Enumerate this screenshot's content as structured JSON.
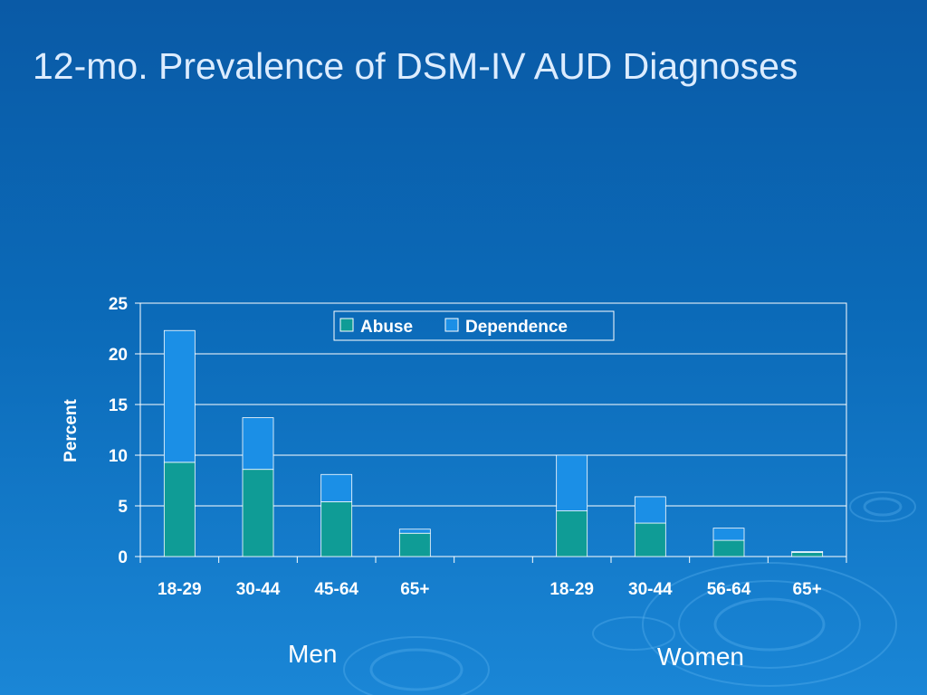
{
  "slide": {
    "title": "12-mo. Prevalence of DSM-IV AUD Diagnoses",
    "group_labels": [
      "Men",
      "Women"
    ]
  },
  "colors": {
    "abuse": "#0f9c96",
    "dependence": "#1b8fe6",
    "axis": "#ffffff",
    "background": "#0b63b0"
  },
  "chart_data": {
    "type": "bar",
    "stacked": true,
    "ylabel": "Percent",
    "ylim": [
      0,
      25
    ],
    "yticks": [
      0,
      5,
      10,
      15,
      20,
      25
    ],
    "grid": true,
    "legend_position": "top-center",
    "categories": [
      "18-29",
      "30-44",
      "45-64",
      "65+",
      "",
      "18-29",
      "30-44",
      "56-64",
      "65+"
    ],
    "series": [
      {
        "name": "Abuse",
        "values": [
          9.3,
          8.6,
          5.4,
          2.3,
          0,
          4.5,
          3.3,
          1.6,
          0.4
        ]
      },
      {
        "name": "Dependence",
        "values": [
          13.0,
          5.1,
          2.7,
          0.4,
          0,
          5.5,
          2.6,
          1.2,
          0.1
        ]
      }
    ]
  }
}
